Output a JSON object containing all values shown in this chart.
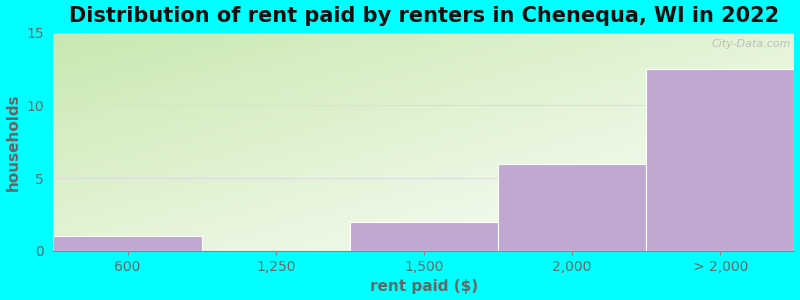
{
  "title": "Distribution of rent paid by renters in Chenequa, WI in 2022",
  "xlabel": "rent paid ($)",
  "ylabel": "households",
  "background_color": "#00FFFF",
  "bar_color": "#C0A8D0",
  "bar_edge_color": "#FFFFFF",
  "categories": [
    "600",
    "1,250",
    "1,500",
    "2,000",
    "> 2,000"
  ],
  "values": [
    1,
    0,
    2,
    6,
    12.5
  ],
  "ylim": [
    0,
    15
  ],
  "yticks": [
    0,
    5,
    10,
    15
  ],
  "title_fontsize": 15,
  "label_fontsize": 11,
  "tick_fontsize": 10,
  "grid_color": "#DDDDDD",
  "watermark": "City-Data.com",
  "gradient_left": "#C8E8B0",
  "gradient_right": "#FFFFFF"
}
